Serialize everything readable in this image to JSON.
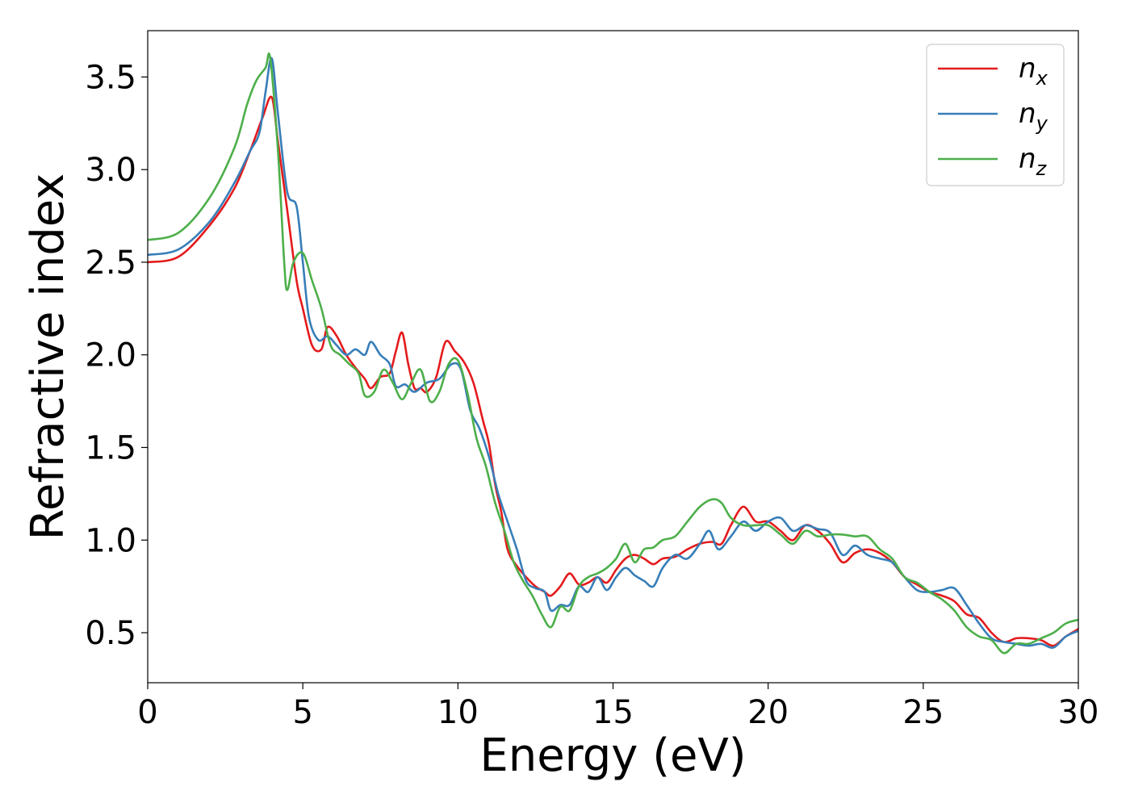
{
  "chart_data": {
    "type": "line",
    "title": "",
    "xlabel": "Energy (eV)",
    "ylabel": "Refractive index",
    "xlim": [
      0,
      30
    ],
    "ylim": [
      0.23,
      3.75
    ],
    "xticks": [
      0,
      5,
      10,
      15,
      20,
      25,
      30
    ],
    "yticks": [
      0.5,
      1.0,
      1.5,
      2.0,
      2.5,
      3.0,
      3.5
    ],
    "grid": false,
    "legend": "top-right",
    "series": [
      {
        "name": "n",
        "subscript": "x",
        "color": "#e41a1c",
        "points": [
          [
            0,
            2.5
          ],
          [
            1,
            2.53
          ],
          [
            2,
            2.7
          ],
          [
            2.8,
            2.9
          ],
          [
            3.3,
            3.1
          ],
          [
            3.7,
            3.28
          ],
          [
            4.0,
            3.39
          ],
          [
            4.2,
            3.15
          ],
          [
            4.5,
            2.78
          ],
          [
            4.8,
            2.4
          ],
          [
            5.0,
            2.25
          ],
          [
            5.3,
            2.05
          ],
          [
            5.6,
            2.03
          ],
          [
            5.8,
            2.15
          ],
          [
            6.1,
            2.1
          ],
          [
            6.4,
            2.0
          ],
          [
            6.7,
            1.93
          ],
          [
            7.0,
            1.87
          ],
          [
            7.2,
            1.82
          ],
          [
            7.5,
            1.88
          ],
          [
            7.8,
            1.9
          ],
          [
            8.0,
            2.02
          ],
          [
            8.2,
            2.12
          ],
          [
            8.4,
            1.95
          ],
          [
            8.6,
            1.82
          ],
          [
            8.8,
            1.82
          ],
          [
            9.0,
            1.8
          ],
          [
            9.3,
            1.88
          ],
          [
            9.6,
            2.07
          ],
          [
            9.9,
            2.02
          ],
          [
            10.2,
            1.96
          ],
          [
            10.5,
            1.85
          ],
          [
            10.8,
            1.65
          ],
          [
            11.0,
            1.52
          ],
          [
            11.2,
            1.3
          ],
          [
            11.4,
            1.15
          ],
          [
            11.6,
            0.95
          ],
          [
            11.9,
            0.86
          ],
          [
            12.2,
            0.8
          ],
          [
            12.5,
            0.75
          ],
          [
            12.8,
            0.72
          ],
          [
            13.0,
            0.7
          ],
          [
            13.3,
            0.75
          ],
          [
            13.6,
            0.82
          ],
          [
            13.9,
            0.76
          ],
          [
            14.2,
            0.77
          ],
          [
            14.5,
            0.8
          ],
          [
            14.8,
            0.77
          ],
          [
            15.1,
            0.84
          ],
          [
            15.4,
            0.9
          ],
          [
            15.7,
            0.92
          ],
          [
            16.0,
            0.9
          ],
          [
            16.3,
            0.87
          ],
          [
            16.6,
            0.9
          ],
          [
            17.0,
            0.91
          ],
          [
            17.4,
            0.95
          ],
          [
            17.8,
            0.98
          ],
          [
            18.2,
            0.99
          ],
          [
            18.5,
            0.98
          ],
          [
            18.8,
            1.08
          ],
          [
            19.2,
            1.18
          ],
          [
            19.6,
            1.1
          ],
          [
            20.0,
            1.1
          ],
          [
            20.4,
            1.05
          ],
          [
            20.8,
            1.0
          ],
          [
            21.2,
            1.08
          ],
          [
            21.6,
            1.05
          ],
          [
            22.0,
            0.98
          ],
          [
            22.4,
            0.88
          ],
          [
            22.8,
            0.93
          ],
          [
            23.2,
            0.95
          ],
          [
            23.6,
            0.93
          ],
          [
            24.0,
            0.88
          ],
          [
            24.4,
            0.8
          ],
          [
            24.8,
            0.76
          ],
          [
            25.2,
            0.72
          ],
          [
            25.6,
            0.7
          ],
          [
            26.0,
            0.67
          ],
          [
            26.4,
            0.6
          ],
          [
            26.8,
            0.58
          ],
          [
            27.2,
            0.5
          ],
          [
            27.6,
            0.45
          ],
          [
            28.0,
            0.47
          ],
          [
            28.4,
            0.47
          ],
          [
            28.8,
            0.46
          ],
          [
            29.2,
            0.43
          ],
          [
            29.6,
            0.48
          ],
          [
            30,
            0.52
          ]
        ]
      },
      {
        "name": "n",
        "subscript": "y",
        "color": "#377eb8",
        "points": [
          [
            0,
            2.54
          ],
          [
            1,
            2.57
          ],
          [
            2,
            2.72
          ],
          [
            2.8,
            2.93
          ],
          [
            3.3,
            3.1
          ],
          [
            3.6,
            3.2
          ],
          [
            3.8,
            3.42
          ],
          [
            4.0,
            3.6
          ],
          [
            4.2,
            3.3
          ],
          [
            4.5,
            2.88
          ],
          [
            4.8,
            2.8
          ],
          [
            5.0,
            2.5
          ],
          [
            5.2,
            2.2
          ],
          [
            5.5,
            2.08
          ],
          [
            5.8,
            2.1
          ],
          [
            6.1,
            2.05
          ],
          [
            6.4,
            2.0
          ],
          [
            6.7,
            2.03
          ],
          [
            7.0,
            2.0
          ],
          [
            7.2,
            2.07
          ],
          [
            7.5,
            2.0
          ],
          [
            7.8,
            1.95
          ],
          [
            8.0,
            1.83
          ],
          [
            8.3,
            1.84
          ],
          [
            8.6,
            1.8
          ],
          [
            9.0,
            1.85
          ],
          [
            9.4,
            1.87
          ],
          [
            9.8,
            1.95
          ],
          [
            10.1,
            1.92
          ],
          [
            10.4,
            1.7
          ],
          [
            10.7,
            1.6
          ],
          [
            11.0,
            1.45
          ],
          [
            11.3,
            1.25
          ],
          [
            11.6,
            1.1
          ],
          [
            11.9,
            0.95
          ],
          [
            12.2,
            0.78
          ],
          [
            12.5,
            0.74
          ],
          [
            12.8,
            0.72
          ],
          [
            13.0,
            0.62
          ],
          [
            13.3,
            0.65
          ],
          [
            13.6,
            0.65
          ],
          [
            13.9,
            0.75
          ],
          [
            14.2,
            0.72
          ],
          [
            14.5,
            0.8
          ],
          [
            14.8,
            0.73
          ],
          [
            15.1,
            0.8
          ],
          [
            15.4,
            0.85
          ],
          [
            15.7,
            0.81
          ],
          [
            16.0,
            0.78
          ],
          [
            16.3,
            0.75
          ],
          [
            16.6,
            0.85
          ],
          [
            17.0,
            0.92
          ],
          [
            17.4,
            0.9
          ],
          [
            17.8,
            0.98
          ],
          [
            18.1,
            1.05
          ],
          [
            18.4,
            0.95
          ],
          [
            18.8,
            1.02
          ],
          [
            19.2,
            1.1
          ],
          [
            19.6,
            1.05
          ],
          [
            20.0,
            1.1
          ],
          [
            20.4,
            1.12
          ],
          [
            20.8,
            1.05
          ],
          [
            21.2,
            1.08
          ],
          [
            21.6,
            1.06
          ],
          [
            22.0,
            1.04
          ],
          [
            22.4,
            0.92
          ],
          [
            22.8,
            0.97
          ],
          [
            23.2,
            0.92
          ],
          [
            23.6,
            0.9
          ],
          [
            24.0,
            0.88
          ],
          [
            24.4,
            0.8
          ],
          [
            24.8,
            0.73
          ],
          [
            25.2,
            0.72
          ],
          [
            25.6,
            0.73
          ],
          [
            26.0,
            0.74
          ],
          [
            26.4,
            0.65
          ],
          [
            26.8,
            0.55
          ],
          [
            27.2,
            0.47
          ],
          [
            27.6,
            0.45
          ],
          [
            28.0,
            0.44
          ],
          [
            28.4,
            0.43
          ],
          [
            28.8,
            0.44
          ],
          [
            29.2,
            0.42
          ],
          [
            29.6,
            0.48
          ],
          [
            30,
            0.51
          ]
        ]
      },
      {
        "name": "n",
        "subscript": "z",
        "color": "#4daf4a",
        "points": [
          [
            0,
            2.62
          ],
          [
            1,
            2.66
          ],
          [
            2,
            2.85
          ],
          [
            2.8,
            3.12
          ],
          [
            3.2,
            3.35
          ],
          [
            3.5,
            3.48
          ],
          [
            3.8,
            3.55
          ],
          [
            3.95,
            3.6
          ],
          [
            4.2,
            3.1
          ],
          [
            4.4,
            2.5
          ],
          [
            4.5,
            2.35
          ],
          [
            4.7,
            2.5
          ],
          [
            5.0,
            2.55
          ],
          [
            5.3,
            2.4
          ],
          [
            5.6,
            2.25
          ],
          [
            5.9,
            2.05
          ],
          [
            6.2,
            2.0
          ],
          [
            6.5,
            1.95
          ],
          [
            6.8,
            1.9
          ],
          [
            7.0,
            1.78
          ],
          [
            7.3,
            1.8
          ],
          [
            7.6,
            1.92
          ],
          [
            7.9,
            1.85
          ],
          [
            8.2,
            1.76
          ],
          [
            8.5,
            1.85
          ],
          [
            8.8,
            1.92
          ],
          [
            9.1,
            1.75
          ],
          [
            9.4,
            1.8
          ],
          [
            9.7,
            1.95
          ],
          [
            10.0,
            1.97
          ],
          [
            10.3,
            1.8
          ],
          [
            10.6,
            1.55
          ],
          [
            10.9,
            1.4
          ],
          [
            11.2,
            1.2
          ],
          [
            11.5,
            1.05
          ],
          [
            11.8,
            0.88
          ],
          [
            12.1,
            0.78
          ],
          [
            12.4,
            0.7
          ],
          [
            12.7,
            0.6
          ],
          [
            13.0,
            0.53
          ],
          [
            13.3,
            0.64
          ],
          [
            13.6,
            0.62
          ],
          [
            13.9,
            0.75
          ],
          [
            14.2,
            0.8
          ],
          [
            14.5,
            0.82
          ],
          [
            14.8,
            0.85
          ],
          [
            15.1,
            0.9
          ],
          [
            15.4,
            0.98
          ],
          [
            15.7,
            0.88
          ],
          [
            16.0,
            0.95
          ],
          [
            16.3,
            0.96
          ],
          [
            16.6,
            1.0
          ],
          [
            17.0,
            1.02
          ],
          [
            17.4,
            1.1
          ],
          [
            17.8,
            1.18
          ],
          [
            18.2,
            1.22
          ],
          [
            18.5,
            1.2
          ],
          [
            18.8,
            1.12
          ],
          [
            19.2,
            1.08
          ],
          [
            19.6,
            1.08
          ],
          [
            20.0,
            1.08
          ],
          [
            20.4,
            1.03
          ],
          [
            20.8,
            0.98
          ],
          [
            21.2,
            1.05
          ],
          [
            21.6,
            1.02
          ],
          [
            22.0,
            1.03
          ],
          [
            22.4,
            1.03
          ],
          [
            22.8,
            1.02
          ],
          [
            23.2,
            1.02
          ],
          [
            23.6,
            0.95
          ],
          [
            24.0,
            0.9
          ],
          [
            24.4,
            0.8
          ],
          [
            24.8,
            0.77
          ],
          [
            25.2,
            0.72
          ],
          [
            25.6,
            0.68
          ],
          [
            26.0,
            0.62
          ],
          [
            26.4,
            0.53
          ],
          [
            26.8,
            0.48
          ],
          [
            27.2,
            0.46
          ],
          [
            27.6,
            0.39
          ],
          [
            28.0,
            0.44
          ],
          [
            28.4,
            0.44
          ],
          [
            28.8,
            0.47
          ],
          [
            29.2,
            0.5
          ],
          [
            29.6,
            0.55
          ],
          [
            30,
            0.57
          ]
        ]
      }
    ]
  }
}
